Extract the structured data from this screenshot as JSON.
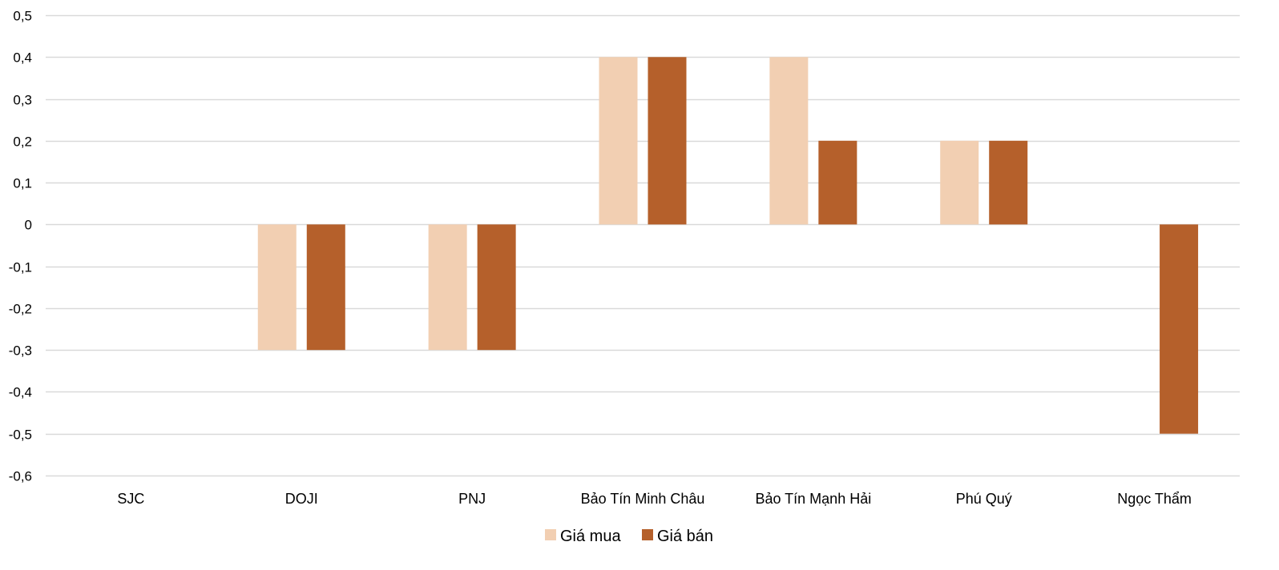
{
  "chart_data": {
    "type": "bar",
    "title": "",
    "xlabel": "",
    "ylabel": "",
    "categories": [
      "SJC",
      "DOJI",
      "PNJ",
      "Bảo Tín Minh Châu",
      "Bảo Tín Mạnh Hải",
      "Phú Quý",
      "Ngọc Thẩm"
    ],
    "series": [
      {
        "name": "Giá mua",
        "color": "#F2CFB2",
        "values": [
          0,
          -0.3,
          -0.3,
          0.4,
          0.4,
          0.2,
          0
        ]
      },
      {
        "name": "Giá bán",
        "color": "#B5602B",
        "values": [
          0,
          -0.3,
          -0.3,
          0.4,
          0.2,
          0.2,
          -0.5
        ]
      }
    ],
    "ylim": [
      -0.6,
      0.5
    ],
    "yticks": [
      0.5,
      0.4,
      0.3,
      0.2,
      0.1,
      0,
      -0.1,
      -0.2,
      -0.3,
      -0.4,
      -0.5,
      -0.6
    ],
    "ytick_labels": [
      "0,5",
      "0,4",
      "0,3",
      "0,2",
      "0,1",
      "0",
      "-0,1",
      "-0,2",
      "-0,3",
      "-0,4",
      "-0,5",
      "-0,6"
    ],
    "grid": true,
    "legend_position": "bottom-center",
    "gridline_color": "#D9D9D9"
  }
}
